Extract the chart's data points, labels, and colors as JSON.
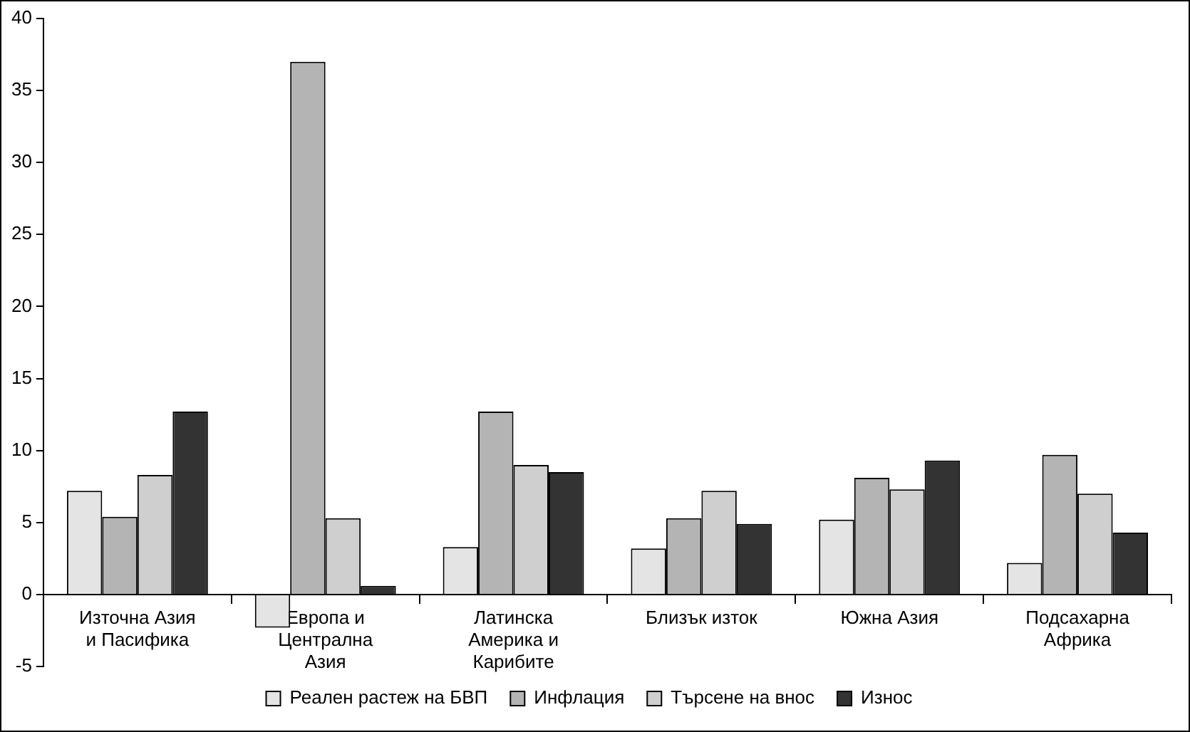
{
  "chart_data": {
    "type": "bar",
    "categories": [
      "Източна Азия и Пасифика",
      "Европа и Централна Азия",
      "Латинска Америка и Карибите",
      "Близък изток",
      "Южна Азия",
      "Подсахарна Африка"
    ],
    "series": [
      {
        "name": "Реален растеж на БВП",
        "color": "#e4e4e4",
        "values": [
          7.2,
          -2.3,
          3.3,
          3.2,
          5.2,
          2.2
        ]
      },
      {
        "name": "Инфлация",
        "color": "#b4b4b4",
        "values": [
          5.4,
          37,
          12.7,
          5.3,
          8.1,
          9.7
        ]
      },
      {
        "name": "Търсене на внос",
        "color": "#cfcfcf",
        "values": [
          8.3,
          5.3,
          9.0,
          7.2,
          7.3,
          7.0
        ]
      },
      {
        "name": "Износ",
        "color": "#333333",
        "values": [
          12.7,
          0.6,
          8.5,
          4.9,
          9.3,
          4.3
        ]
      }
    ],
    "ylim": [
      -5,
      40
    ],
    "yticks": [
      -5,
      0,
      5,
      10,
      15,
      20,
      25,
      30,
      35,
      40
    ],
    "grid": false,
    "legend": "bottom"
  }
}
